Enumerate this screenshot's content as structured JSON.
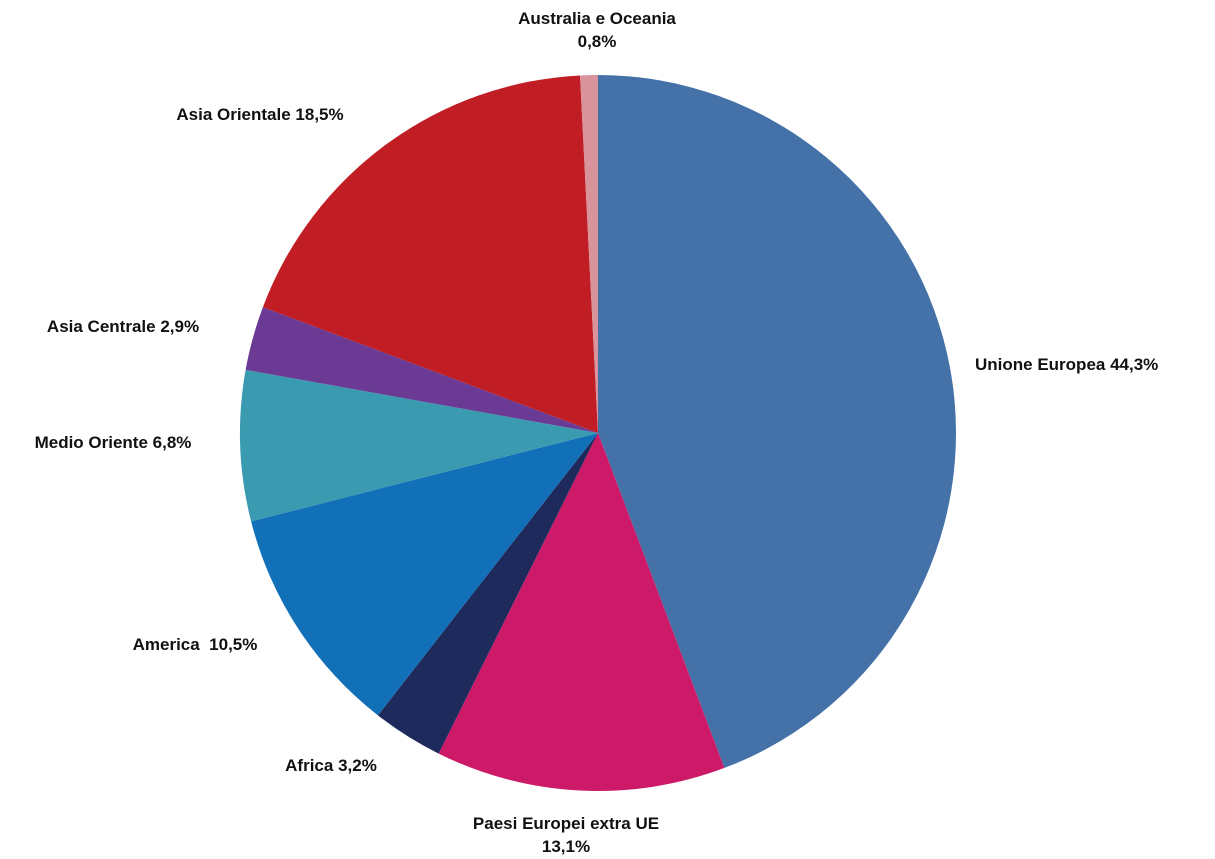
{
  "chart_data": {
    "type": "pie",
    "categories": [
      "Unione Europea",
      "Paesi Europei extra UE",
      "Africa",
      "America ",
      "Medio Oriente",
      "Asia Centrale",
      "Asia Orientale",
      "Australia e Oceania"
    ],
    "values": [
      44.3,
      13.1,
      3.2,
      10.5,
      6.8,
      2.9,
      18.5,
      0.8
    ],
    "value_labels": [
      "44,3%",
      "13,1%",
      "3,2%",
      "10,5%",
      "6,8%",
      "2,9%",
      "18,5%",
      "0,8%"
    ],
    "colors": [
      "#4472a8",
      "#cc1a68",
      "#1f2a5c",
      "#1270b8",
      "#3a9ab0",
      "#6b3a94",
      "#c01e24",
      "#d8949a"
    ]
  }
}
